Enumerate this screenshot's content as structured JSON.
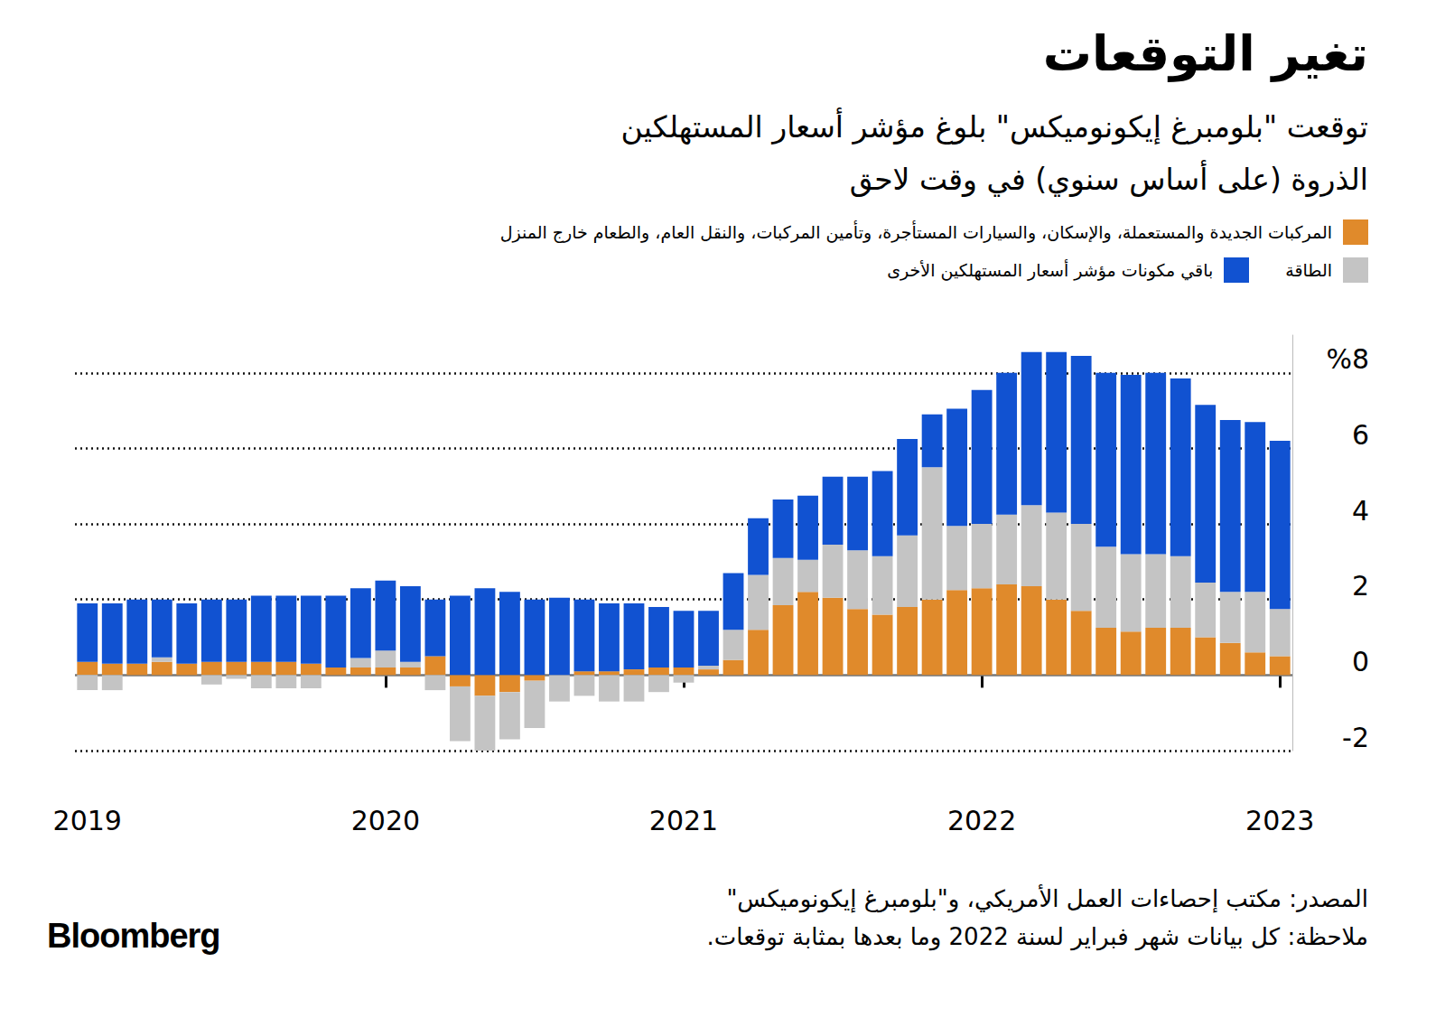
{
  "chart_data": {
    "type": "bar",
    "title": "تغير التوقعات",
    "subtitle": "توقعت \"بلومبرغ إيكونوميكس\" بلوغ مؤشر أسعار المستهلكين\nالذروة (على أساس سنوي) في وقت لاحق",
    "source": "المصدر: مكتب إحصاءات العمل الأمريكي، و\"بلومبرغ إيكونوميكس\"",
    "note": "ملاحظة: كل بيانات شهر فبراير لسنة 2022 وما بعدها بمثابة توقعات.",
    "brand": "Bloomberg",
    "stacked": true,
    "grid": true,
    "legend": "top-right",
    "categories": [
      "2019",
      null,
      null,
      null,
      null,
      null,
      null,
      null,
      null,
      null,
      null,
      null,
      "2020",
      null,
      null,
      null,
      null,
      null,
      null,
      null,
      null,
      null,
      null,
      null,
      "2021",
      null,
      null,
      null,
      null,
      null,
      null,
      null,
      null,
      null,
      null,
      null,
      "2022",
      null,
      null,
      null,
      null,
      null,
      null,
      null,
      null,
      null,
      null,
      null,
      "2023"
    ],
    "series": [
      {
        "name": "المركبات الجديدة والمستعملة، والإسكان، والسيارات المستأجرة، وتأمين المركبات، والنقل العام، والطعام خارج المنزل",
        "color": "#e08a2b",
        "values": [
          0.35,
          0.3,
          0.3,
          0.35,
          0.3,
          0.35,
          0.35,
          0.35,
          0.35,
          0.3,
          0.2,
          0.2,
          0.2,
          0.2,
          0.5,
          -0.3,
          -0.55,
          -0.45,
          -0.15,
          0,
          0.1,
          0.1,
          0.15,
          0.2,
          0.2,
          0.15,
          0.4,
          1.2,
          1.85,
          2.2,
          2.05,
          1.75,
          1.6,
          1.8,
          2.0,
          2.25,
          2.3,
          2.4,
          2.35,
          2.0,
          1.7,
          1.25,
          1.15,
          1.25,
          1.25,
          1.0,
          0.85,
          0.6,
          0.5
        ]
      },
      {
        "name": "الطاقة",
        "color": "#c4c4c4",
        "values": [
          -0.4,
          -0.4,
          0,
          0.12,
          0,
          -0.25,
          -0.1,
          -0.35,
          -0.35,
          -0.35,
          0,
          0.25,
          0.45,
          0.15,
          -0.4,
          -1.45,
          -1.45,
          -1.25,
          -1.25,
          -0.7,
          -0.55,
          -0.7,
          -0.7,
          -0.45,
          -0.2,
          0.1,
          0.8,
          1.45,
          1.25,
          0.85,
          1.4,
          1.55,
          1.55,
          1.9,
          3.5,
          1.7,
          1.7,
          1.85,
          2.15,
          2.3,
          2.3,
          2.15,
          2.05,
          1.95,
          1.9,
          1.45,
          1.35,
          1.6,
          1.25
        ]
      },
      {
        "name": "باقي مكونات مؤشر أسعار المستهلكين الأخرى",
        "color": "#1152d1",
        "values": [
          1.55,
          1.6,
          1.7,
          1.53,
          1.6,
          1.65,
          1.65,
          1.75,
          1.75,
          1.8,
          1.9,
          1.85,
          1.85,
          2.0,
          1.5,
          2.1,
          2.3,
          2.2,
          2.0,
          2.05,
          1.9,
          1.8,
          1.75,
          1.6,
          1.5,
          1.45,
          1.5,
          1.5,
          1.55,
          1.7,
          1.8,
          1.95,
          2.25,
          2.55,
          1.4,
          3.1,
          3.55,
          3.75,
          4.05,
          4.25,
          4.45,
          4.6,
          4.75,
          4.8,
          4.7,
          4.7,
          4.55,
          4.5,
          4.45
        ]
      }
    ],
    "ylim": [
      -2,
      9
    ],
    "yticks": [
      -2,
      0,
      2,
      4,
      6,
      {
        "value": 8,
        "label": "%8"
      }
    ]
  }
}
